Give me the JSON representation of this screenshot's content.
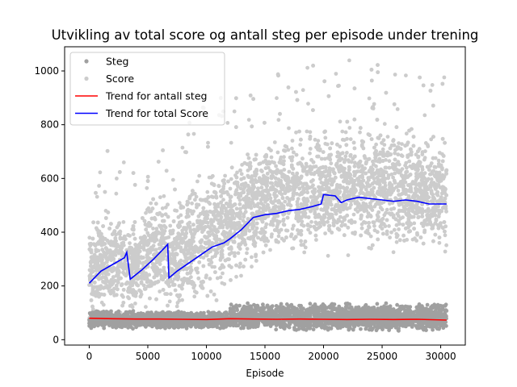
{
  "chart_data": {
    "type": "scatter",
    "title": "Utvikling av total score og antall steg per episode under trening",
    "xlabel": "Episode",
    "ylabel": "",
    "xlim": [
      -2100,
      32100
    ],
    "ylim": [
      -20,
      1090
    ],
    "x_ticks": [
      0,
      5000,
      10000,
      15000,
      20000,
      25000,
      30000
    ],
    "y_ticks": [
      0,
      200,
      400,
      600,
      800,
      1000
    ],
    "grid": false,
    "legend_position": "top-left",
    "colors": {
      "steg_points": "#a0a0a0",
      "score_points": "#cccccc",
      "steg_trend": "#ff0000",
      "score_trend": "#0000ff"
    },
    "legend": [
      "Steg",
      "Score",
      "Trend for antall steg",
      "Trend for total Score"
    ],
    "series": [
      {
        "name": "Steg",
        "kind": "scatter",
        "description_band": {
          "x": [
            0,
            11900,
            12000,
            30500
          ],
          "low": [
            40,
            40,
            35,
            30
          ],
          "high": [
            110,
            105,
            140,
            135
          ]
        }
      },
      {
        "name": "Score",
        "kind": "scatter",
        "description_band": {
          "x": [
            0,
            3000,
            3400,
            6500,
            7000,
            9000,
            12000,
            15000,
            20000,
            25000,
            30500
          ],
          "low": [
            60,
            70,
            60,
            80,
            60,
            80,
            150,
            250,
            280,
            290,
            280
          ],
          "high": [
            450,
            560,
            470,
            620,
            520,
            650,
            720,
            800,
            840,
            860,
            800
          ]
        }
      },
      {
        "name": "Trend for antall steg",
        "kind": "line",
        "x": [
          0,
          2000,
          4000,
          6000,
          8000,
          10000,
          12000,
          14000,
          16000,
          18000,
          20000,
          22000,
          24000,
          26000,
          28000,
          30500
        ],
        "y": [
          80,
          78,
          77,
          77,
          76,
          75,
          78,
          77,
          76,
          77,
          76,
          75,
          76,
          75,
          76,
          73
        ]
      },
      {
        "name": "Trend for total Score",
        "kind": "line",
        "x": [
          0,
          1000,
          2000,
          3000,
          3200,
          3500,
          4500,
          5500,
          6500,
          6700,
          6800,
          7500,
          8500,
          9500,
          10500,
          11500,
          12000,
          13000,
          14000,
          15000,
          16000,
          17000,
          18000,
          19000,
          19800,
          20000,
          21000,
          21500,
          22000,
          23000,
          24000,
          25000,
          26000,
          27000,
          28000,
          29000,
          30000,
          30500
        ],
        "y": [
          210,
          255,
          280,
          305,
          325,
          225,
          260,
          300,
          345,
          355,
          230,
          255,
          285,
          315,
          345,
          360,
          375,
          410,
          455,
          465,
          470,
          480,
          485,
          495,
          505,
          540,
          535,
          510,
          520,
          530,
          525,
          520,
          515,
          520,
          515,
          505,
          505,
          505
        ]
      }
    ]
  }
}
